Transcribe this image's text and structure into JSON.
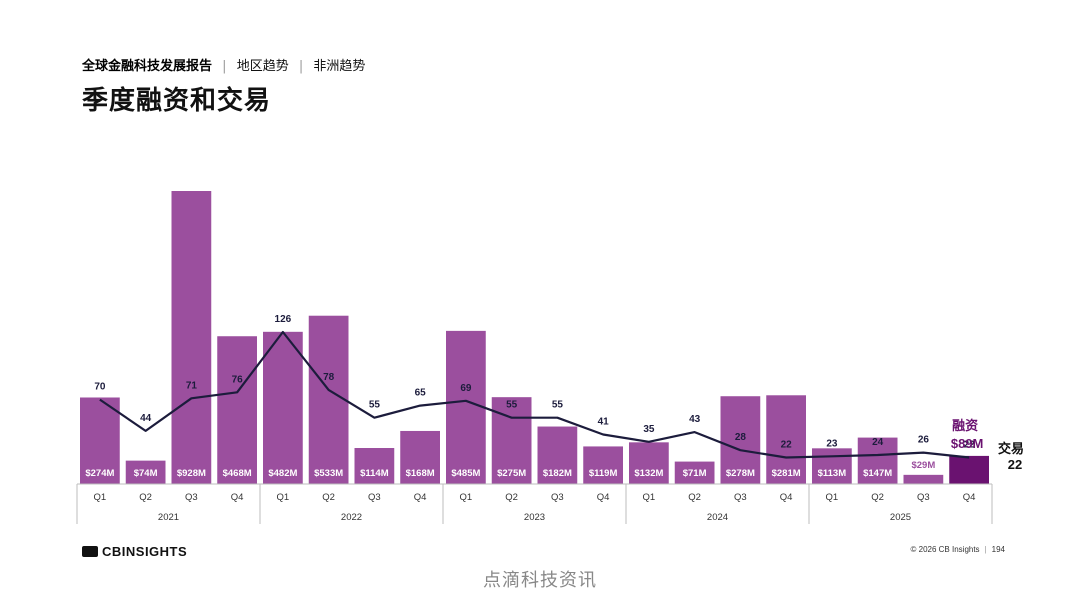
{
  "header": {
    "report_title": "全球金融科技发展报告",
    "region": "地区趋势",
    "section": "非洲趋势"
  },
  "page_title": "季度融资和交易",
  "chart_data": {
    "type": "bar+line",
    "title": "季度融资和交易",
    "years": [
      "2021",
      "2022",
      "2023",
      "2024",
      "2025"
    ],
    "quarters": [
      "Q1",
      "Q2",
      "Q3",
      "Q4"
    ],
    "categories": [
      "2021 Q1",
      "2021 Q2",
      "2021 Q3",
      "2021 Q4",
      "2022 Q1",
      "2022 Q2",
      "2022 Q3",
      "2022 Q4",
      "2023 Q1",
      "2023 Q2",
      "2023 Q3",
      "2023 Q4",
      "2024 Q1",
      "2024 Q2",
      "2024 Q3",
      "2024 Q4",
      "2025 Q1",
      "2025 Q2",
      "2025 Q3",
      "2025 Q4"
    ],
    "series": [
      {
        "name": "融资",
        "kind": "bar",
        "unit": "$M",
        "values": [
          274,
          74,
          928,
          468,
          482,
          533,
          114,
          168,
          485,
          275,
          182,
          119,
          132,
          71,
          278,
          281,
          113,
          147,
          29,
          89
        ],
        "labels": [
          "$274M",
          "$74M",
          "$928M",
          "$468M",
          "$482M",
          "$533M",
          "$114M",
          "$168M",
          "$485M",
          "$275M",
          "$182M",
          "$119M",
          "$132M",
          "$71M",
          "$278M",
          "$281M",
          "$113M",
          "$147M",
          "$29M",
          "$89M"
        ]
      },
      {
        "name": "交易",
        "kind": "line",
        "values": [
          70,
          44,
          71,
          76,
          126,
          78,
          55,
          65,
          69,
          55,
          55,
          41,
          35,
          43,
          28,
          22,
          23,
          24,
          26,
          22
        ]
      }
    ],
    "legend": {
      "funding_label": "融资",
      "funding_value": "$89M",
      "deals_label": "交易",
      "deals_value": "22"
    },
    "ylim_funding": [
      0,
      930
    ],
    "ylim_deals": [
      0,
      210
    ],
    "colors": {
      "bar": "#9b4f9e",
      "bar_last": "#6a1270",
      "line": "#1c1c3c",
      "legend_funding": "#6a1270",
      "axis": "#bdbdbd"
    }
  },
  "footer": {
    "logo_text": "CBINSIGHTS",
    "copyright": "© 2026 CB Insights",
    "page_number": "194"
  },
  "watermark": "点滴科技资讯"
}
